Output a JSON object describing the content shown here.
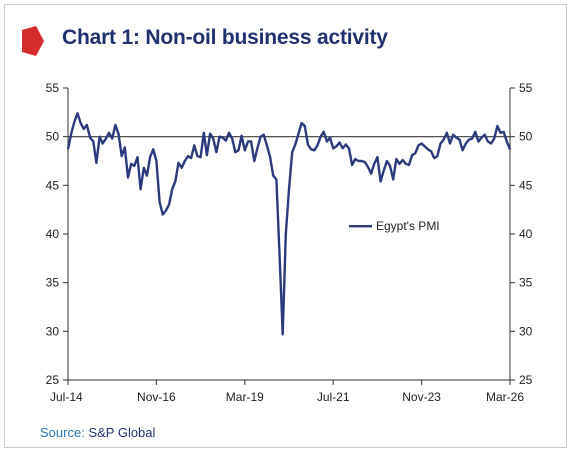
{
  "title": "Chart 1: Non-oil business activity",
  "source_label": "Source:",
  "source_value": "S&P Global",
  "colors": {
    "line": "#2b3a7d",
    "accent": "#d62b2b",
    "title": "#1f3170",
    "reference": "#3a3a3a"
  },
  "chart_data": {
    "type": "line",
    "title": "Chart 1: Non-oil business activity",
    "x_tick_labels": [
      "Jul-14",
      "Nov-16",
      "Mar-19",
      "Jul-21",
      "Nov-23",
      "Mar-26"
    ],
    "x_ticks": [
      "2014-07",
      "2016-11",
      "2019-03",
      "2021-07",
      "2023-11",
      "2026-03"
    ],
    "x_range": [
      "2014-07",
      "2026-03"
    ],
    "ylim": [
      25,
      55
    ],
    "y_ticks": [
      25,
      30,
      35,
      40,
      45,
      50,
      55
    ],
    "y_tick_labels": [
      "25",
      "30",
      "35",
      "40",
      "45",
      "50",
      "55"
    ],
    "reference_line": 50,
    "legend_position": "right-middle",
    "series": [
      {
        "name": "Egypt's PMI",
        "x": [
          "2014-07",
          "2014-08",
          "2014-09",
          "2014-10",
          "2014-11",
          "2014-12",
          "2015-01",
          "2015-02",
          "2015-03",
          "2015-04",
          "2015-05",
          "2015-06",
          "2015-07",
          "2015-08",
          "2015-09",
          "2015-10",
          "2015-11",
          "2015-12",
          "2016-01",
          "2016-02",
          "2016-03",
          "2016-04",
          "2016-05",
          "2016-06",
          "2016-07",
          "2016-08",
          "2016-09",
          "2016-10",
          "2016-11",
          "2016-12",
          "2017-01",
          "2017-02",
          "2017-03",
          "2017-04",
          "2017-05",
          "2017-06",
          "2017-07",
          "2017-08",
          "2017-09",
          "2017-10",
          "2017-11",
          "2017-12",
          "2018-01",
          "2018-02",
          "2018-03",
          "2018-04",
          "2018-05",
          "2018-06",
          "2018-07",
          "2018-08",
          "2018-09",
          "2018-10",
          "2018-11",
          "2018-12",
          "2019-01",
          "2019-02",
          "2019-03",
          "2019-04",
          "2019-05",
          "2019-06",
          "2019-07",
          "2019-08",
          "2019-09",
          "2019-10",
          "2019-11",
          "2019-12",
          "2020-01",
          "2020-02",
          "2020-03",
          "2020-04",
          "2020-05",
          "2020-06",
          "2020-07",
          "2020-08",
          "2020-09",
          "2020-10",
          "2020-11",
          "2020-12",
          "2021-01",
          "2021-02",
          "2021-03",
          "2021-04",
          "2021-05",
          "2021-06",
          "2021-07",
          "2021-08",
          "2021-09",
          "2021-10",
          "2021-11",
          "2021-12",
          "2022-01",
          "2022-02",
          "2022-03",
          "2022-04",
          "2022-05",
          "2022-06",
          "2022-07",
          "2022-08",
          "2022-09",
          "2022-10",
          "2022-11",
          "2022-12",
          "2023-01",
          "2023-02",
          "2023-03",
          "2023-04",
          "2023-05",
          "2023-06",
          "2023-07",
          "2023-08",
          "2023-09",
          "2023-10",
          "2023-11",
          "2023-12",
          "2024-01",
          "2024-02",
          "2024-03",
          "2024-04",
          "2024-05",
          "2024-06",
          "2024-07",
          "2024-08",
          "2024-09",
          "2024-10",
          "2024-11",
          "2024-12",
          "2025-01",
          "2025-02",
          "2025-03",
          "2025-04",
          "2025-05",
          "2025-06",
          "2025-07",
          "2025-08",
          "2025-09",
          "2025-10",
          "2025-11",
          "2025-12",
          "2026-01",
          "2026-02",
          "2026-03"
        ],
        "values": [
          48.7,
          50.3,
          51.5,
          52.4,
          51.4,
          50.8,
          51.2,
          49.9,
          49.5,
          47.3,
          50.0,
          49.3,
          49.8,
          50.4,
          49.8,
          51.2,
          50.3,
          48.0,
          48.9,
          45.8,
          47.2,
          47.0,
          47.9,
          44.6,
          46.8,
          46.0,
          47.9,
          48.7,
          47.5,
          43.3,
          42.0,
          42.4,
          43.0,
          44.6,
          45.4,
          47.3,
          46.8,
          47.5,
          48.0,
          47.8,
          49.1,
          48.0,
          47.9,
          50.4,
          48.1,
          50.3,
          49.8,
          48.4,
          50.0,
          49.9,
          49.6,
          50.4,
          49.8,
          48.4,
          48.6,
          50.1,
          48.6,
          49.5,
          49.5,
          47.5,
          48.8,
          50.0,
          50.2,
          49.1,
          47.9,
          46.0,
          45.6,
          38.0,
          29.7,
          40.0,
          44.6,
          48.4,
          49.2,
          50.3,
          51.4,
          51.1,
          49.2,
          48.7,
          48.6,
          49.1,
          50.0,
          50.5,
          49.5,
          49.9,
          48.8,
          49.0,
          49.4,
          48.8,
          49.2,
          48.8,
          47.1,
          47.7,
          47.5,
          47.5,
          47.4,
          46.9,
          46.2,
          47.2,
          47.9,
          45.4,
          46.5,
          47.5,
          47.0,
          45.6,
          47.7,
          47.2,
          47.6,
          47.2,
          47.1,
          48.1,
          48.3,
          49.1,
          49.3,
          49.0,
          48.7,
          48.5,
          47.8,
          48.0,
          49.3,
          49.7,
          50.4,
          49.3,
          50.2,
          49.9,
          49.7,
          48.6,
          49.3,
          49.7,
          49.8,
          50.5,
          49.5,
          49.9,
          50.2,
          49.5,
          49.3,
          49.8,
          51.1,
          50.4,
          50.5,
          49.5,
          48.7
        ]
      }
    ]
  }
}
